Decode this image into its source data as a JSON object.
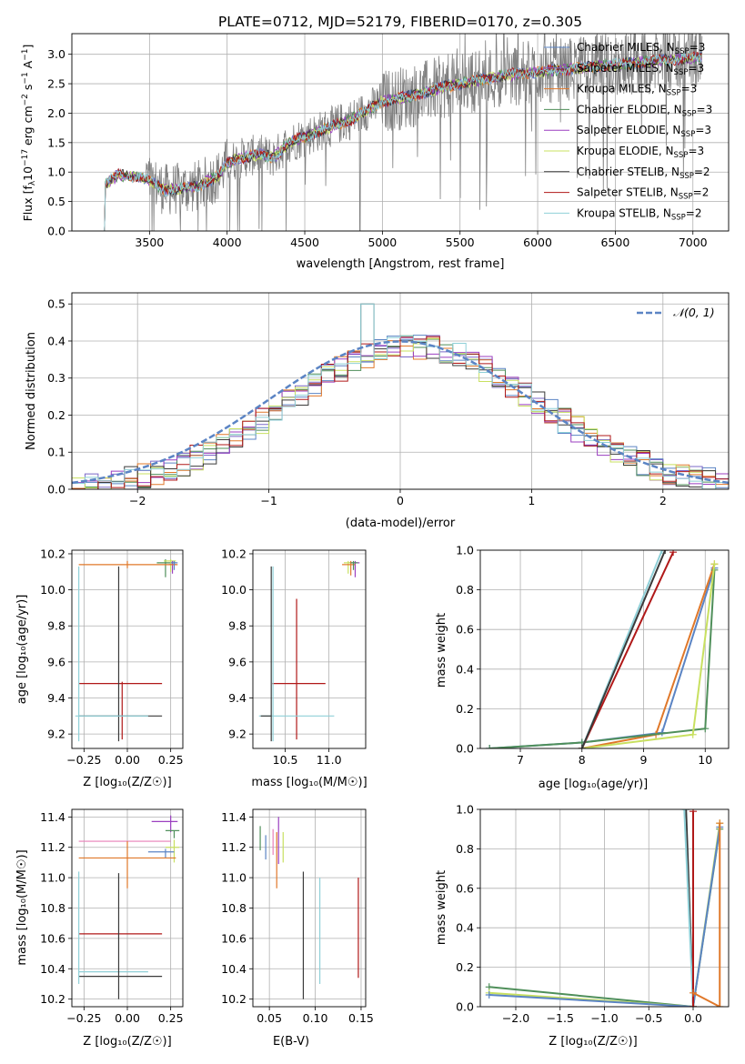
{
  "title": "PLATE=0712, MJD=52179, FIBERID=0170, z=0.305",
  "colors": {
    "miles_chabrier": "#5b84c4",
    "miles_salpeter": "#7b68c8",
    "miles_kroupa": "#e0782a",
    "elodie_chabrier": "#4f8f5a",
    "elodie_salpeter": "#9b3fc0",
    "elodie_kroupa": "#c8e060",
    "stelib_chabrier": "#3a3a3a",
    "stelib_salpeter": "#b01818",
    "stelib_kroupa": "#8fd0d8",
    "data": "#808080",
    "gauss": "#5b84c4",
    "pink": "#e87fb8"
  },
  "spectrum": {
    "ylabel_main": "Flux [f",
    "ylabel_sub": "λ",
    "ylabel_rest": "10",
    "ylabel_exp": "−17",
    "ylabel_units": " erg cm",
    "ylabel_exp2": "−2",
    "ylabel_units2": " s",
    "ylabel_exp3": "−1",
    "ylabel_units3": " A",
    "ylabel_exp4": "−1",
    "ylabel_end": "]",
    "xlabel": "wavelength [Angstrom, rest frame]",
    "legend": [
      {
        "name": "Chabrier MILES, N",
        "sub": "SSP",
        "val": "=3",
        "color": "miles_chabrier"
      },
      {
        "name": "Salpeter MILES, N",
        "sub": "SSP",
        "val": "=3",
        "color": "miles_salpeter"
      },
      {
        "name": "Kroupa MILES, N",
        "sub": "SSP",
        "val": "=3",
        "color": "miles_kroupa"
      },
      {
        "name": "Chabrier ELODIE, N",
        "sub": "SSP",
        "val": "=3",
        "color": "elodie_chabrier"
      },
      {
        "name": "Salpeter ELODIE, N",
        "sub": "SSP",
        "val": "=3",
        "color": "elodie_salpeter"
      },
      {
        "name": "Kroupa ELODIE, N",
        "sub": "SSP",
        "val": "=3",
        "color": "elodie_kroupa"
      },
      {
        "name": "Chabrier STELIB, N",
        "sub": "SSP",
        "val": "=2",
        "color": "stelib_chabrier"
      },
      {
        "name": "Salpeter STELIB, N",
        "sub": "SSP",
        "val": "=2",
        "color": "stelib_salpeter"
      },
      {
        "name": "Kroupa STELIB, N",
        "sub": "SSP",
        "val": "=2",
        "color": "stelib_kroupa"
      }
    ]
  },
  "chart_data": [
    {
      "id": "spectrum",
      "type": "line",
      "xlim": [
        3000,
        7230
      ],
      "ylim": [
        0,
        3.35
      ],
      "xticks": [
        3500,
        4000,
        4500,
        5000,
        5500,
        6000,
        6500,
        7000
      ],
      "yticks": [
        0.0,
        0.5,
        1.0,
        1.5,
        2.0,
        2.5,
        3.0
      ],
      "wl_range": [
        3210,
        7060
      ],
      "continuum": [
        [
          3210,
          0.0
        ],
        [
          3215,
          0.8
        ],
        [
          3300,
          0.95
        ],
        [
          3400,
          0.92
        ],
        [
          3480,
          0.88
        ],
        [
          3600,
          0.7
        ],
        [
          3700,
          0.72
        ],
        [
          3800,
          0.75
        ],
        [
          3880,
          0.85
        ],
        [
          3950,
          0.95
        ],
        [
          4000,
          1.15
        ],
        [
          4100,
          1.25
        ],
        [
          4200,
          1.3
        ],
        [
          4300,
          1.25
        ],
        [
          4400,
          1.5
        ],
        [
          4500,
          1.6
        ],
        [
          4600,
          1.7
        ],
        [
          4800,
          1.9
        ],
        [
          5000,
          2.2
        ],
        [
          5200,
          2.3
        ],
        [
          5400,
          2.45
        ],
        [
          5600,
          2.55
        ],
        [
          5800,
          2.65
        ],
        [
          6000,
          2.7
        ],
        [
          6200,
          2.75
        ],
        [
          6400,
          2.8
        ],
        [
          6600,
          2.85
        ],
        [
          6800,
          2.9
        ],
        [
          7060,
          2.95
        ]
      ],
      "grid": true
    },
    {
      "id": "residuals",
      "type": "step",
      "xlabel": "(data-model)/error",
      "ylabel": "Normed distribution",
      "xlim": [
        -2.5,
        2.5
      ],
      "ylim": [
        0,
        0.53
      ],
      "xticks": [
        -2,
        -1,
        0,
        1,
        2
      ],
      "xticklabels": [
        "−2",
        "−1",
        "0",
        "1",
        "2"
      ],
      "yticks": [
        0.0,
        0.1,
        0.2,
        0.3,
        0.4,
        0.5
      ],
      "legend": "𝒩(0, 1)",
      "legend_position": "top-right",
      "bin_width": 0.1,
      "grid": true
    },
    {
      "id": "age_vs_Z",
      "type": "scatter",
      "xlabel": "Z [log₁₀(Z/Z☉)]",
      "ylabel": "age  [log₁₀(age/yr)]",
      "xlim": [
        -0.32,
        0.32
      ],
      "ylim": [
        9.12,
        10.22
      ],
      "xticks": [
        -0.25,
        0.0,
        0.25
      ],
      "xticklabels": [
        "−0.25",
        "0.00",
        "0.25"
      ],
      "yticks": [
        9.2,
        9.4,
        9.6,
        9.8,
        10.0,
        10.2
      ],
      "errorbars": [
        {
          "x": 0.22,
          "y": 10.15,
          "xerr": [
            0.05,
            0.06
          ],
          "yerr": [
            0.08,
            0.02
          ],
          "c": "elodie_chabrier"
        },
        {
          "x": 0.25,
          "y": 10.16,
          "xerr": [
            0.04,
            0.03
          ],
          "yerr": [
            0.06,
            0.01
          ],
          "c": "elodie_kroupa"
        },
        {
          "x": 0.26,
          "y": 10.14,
          "xerr": [
            0.02,
            0.02
          ],
          "yerr": [
            0.05,
            0.02
          ],
          "c": "elodie_salpeter"
        },
        {
          "x": 0.0,
          "y": 10.14,
          "xerr": [
            0.28,
            0.29
          ],
          "yerr": [
            0.02,
            0.02
          ],
          "c": "miles_kroupa"
        },
        {
          "x": 0.27,
          "y": 10.15,
          "xerr": [
            0.02,
            0.02
          ],
          "yerr": [
            0.04,
            0.01
          ],
          "c": "miles_chabrier"
        },
        {
          "x": -0.03,
          "y": 9.48,
          "xerr": [
            0.25,
            0.23
          ],
          "yerr": [
            0.31,
            0.01
          ],
          "c": "stelib_salpeter"
        },
        {
          "x": -0.05,
          "y": 9.3,
          "xerr": [
            0.23,
            0.25
          ],
          "yerr": [
            0.14,
            0.83
          ],
          "c": "stelib_chabrier"
        },
        {
          "x": -0.28,
          "y": 9.3,
          "xerr": [
            0.02,
            0.4
          ],
          "yerr": [
            0.14,
            0.83
          ],
          "c": "stelib_kroupa"
        }
      ]
    },
    {
      "id": "age_vs_mass",
      "type": "scatter",
      "xlabel": "mass [log₁₀(M/M☉)]",
      "xlim": [
        10.13,
        11.42
      ],
      "ylim": [
        9.12,
        10.22
      ],
      "xticks": [
        10.5,
        11.0
      ],
      "xticklabels": [
        "10.5",
        "11.0"
      ],
      "yticks": [
        9.2,
        9.4,
        9.6,
        9.8,
        10.0,
        10.2
      ],
      "errorbars": [
        {
          "x": 11.3,
          "y": 10.15,
          "xerr": [
            0.08,
            0.05
          ],
          "yerr": [
            0.08,
            0.01
          ],
          "c": "elodie_salpeter"
        },
        {
          "x": 11.22,
          "y": 10.15,
          "xerr": [
            0.05,
            0.05
          ],
          "yerr": [
            0.06,
            0.01
          ],
          "c": "elodie_kroupa"
        },
        {
          "x": 11.25,
          "y": 10.14,
          "xerr": [
            0.1,
            0.05
          ],
          "yerr": [
            0.06,
            0.02
          ],
          "c": "miles_kroupa"
        },
        {
          "x": 11.28,
          "y": 10.15,
          "xerr": [
            0.03,
            0.05
          ],
          "yerr": [
            0.04,
            0.01
          ],
          "c": "elodie_chabrier"
        },
        {
          "x": 10.63,
          "y": 9.48,
          "xerr": [
            0.28,
            0.33
          ],
          "yerr": [
            0.31,
            0.47
          ],
          "c": "stelib_salpeter"
        },
        {
          "x": 10.36,
          "y": 9.3,
          "xerr": [
            0.16,
            0.7
          ],
          "yerr": [
            0.14,
            0.83
          ],
          "c": "stelib_kroupa"
        },
        {
          "x": 10.34,
          "y": 9.3,
          "xerr": [
            0.12,
            0.0
          ],
          "yerr": [
            0.14,
            0.83
          ],
          "c": "stelib_chabrier"
        }
      ]
    },
    {
      "id": "weight_vs_age",
      "type": "line",
      "xlabel": "age  [log₁₀(age/yr)]",
      "ylabel": "mass weight",
      "xlim": [
        6.35,
        10.38
      ],
      "ylim": [
        0,
        1
      ],
      "xticks": [
        7,
        8,
        9,
        10
      ],
      "xticklabels": [
        "7",
        "8",
        "9",
        "10"
      ],
      "yticks": [
        0.0,
        0.2,
        0.4,
        0.6,
        0.8,
        1.0
      ],
      "series": [
        {
          "c": "miles_chabrier",
          "x": [
            6.5,
            8.0,
            9.3,
            10.15
          ],
          "y": [
            0.0,
            0.03,
            0.08,
            0.91
          ]
        },
        {
          "c": "miles_kroupa",
          "x": [
            8.0,
            9.2,
            10.15
          ],
          "y": [
            0.0,
            0.07,
            0.93
          ]
        },
        {
          "c": "elodie_chabrier",
          "x": [
            6.5,
            8.0,
            10.0,
            10.15
          ],
          "y": [
            0.0,
            0.03,
            0.1,
            0.9
          ]
        },
        {
          "c": "elodie_kroupa",
          "x": [
            8.0,
            9.8,
            10.15
          ],
          "y": [
            0.0,
            0.07,
            0.93
          ]
        },
        {
          "c": "stelib_salpeter",
          "x": [
            8.0,
            9.48
          ],
          "y": [
            0.0,
            0.99
          ]
        },
        {
          "c": "stelib_kroupa",
          "x": [
            8.0,
            9.3
          ],
          "y": [
            0.0,
            1.0
          ]
        },
        {
          "c": "stelib_chabrier",
          "x": [
            8.0,
            9.35
          ],
          "y": [
            0.0,
            1.0
          ]
        }
      ]
    },
    {
      "id": "mass_vs_Z",
      "type": "scatter",
      "xlabel": "Z [log₁₀(Z/Z☉)]",
      "ylabel": "mass [log₁₀(M/M☉)]",
      "xlim": [
        -0.32,
        0.32
      ],
      "ylim": [
        10.15,
        11.45
      ],
      "xticks": [
        -0.25,
        0.0,
        0.25
      ],
      "xticklabels": [
        "−0.25",
        "0.00",
        "0.25"
      ],
      "yticks": [
        10.2,
        10.4,
        10.6,
        10.8,
        11.0,
        11.2,
        11.4
      ],
      "errorbars": [
        {
          "x": 0.25,
          "y": 11.37,
          "xerr": [
            0.11,
            0.04
          ],
          "yerr": [
            0.07,
            0.04
          ],
          "c": "elodie_salpeter"
        },
        {
          "x": 0.27,
          "y": 11.31,
          "xerr": [
            0.05,
            0.03
          ],
          "yerr": [
            0.05,
            0.0
          ],
          "c": "elodie_chabrier"
        },
        {
          "x": 0.0,
          "y": 11.24,
          "xerr": [
            0.28,
            0.25
          ],
          "yerr": [
            0.0,
            0.0
          ],
          "c": "pink"
        },
        {
          "x": 0.27,
          "y": 11.2,
          "xerr": [
            0.05,
            0.03
          ],
          "yerr": [
            0.1,
            0.05
          ],
          "c": "elodie_kroupa"
        },
        {
          "x": 0.22,
          "y": 11.17,
          "xerr": [
            0.1,
            0.05
          ],
          "yerr": [
            0.04,
            0.02
          ],
          "c": "miles_chabrier"
        },
        {
          "x": 0.0,
          "y": 11.13,
          "xerr": [
            0.28,
            0.28
          ],
          "yerr": [
            0.2,
            0.11
          ],
          "c": "miles_kroupa"
        },
        {
          "x": -0.03,
          "y": 10.63,
          "xerr": [
            0.25,
            0.23
          ],
          "yerr": [
            0.0,
            0.0
          ],
          "c": "stelib_salpeter"
        },
        {
          "x": -0.08,
          "y": 10.38,
          "xerr": [
            0.2,
            0.2
          ],
          "yerr": [
            0.0,
            0.0
          ],
          "c": "stelib_kroupa"
        },
        {
          "x": -0.05,
          "y": 10.35,
          "xerr": [
            0.23,
            0.25
          ],
          "yerr": [
            0.15,
            0.68
          ],
          "c": "stelib_chabrier"
        },
        {
          "x": -0.28,
          "y": 10.6,
          "xerr": [
            0.0,
            0.0
          ],
          "yerr": [
            0.3,
            0.44
          ],
          "c": "stelib_kroupa"
        }
      ]
    },
    {
      "id": "mass_vs_ebv",
      "type": "errorbar",
      "xlabel": "E(B-V)",
      "xlim": [
        0.032,
        0.155
      ],
      "ylim": [
        10.15,
        11.45
      ],
      "xticks": [
        0.05,
        0.1,
        0.15
      ],
      "xticklabels": [
        "0.05",
        "0.10",
        "0.15"
      ],
      "yticks": [
        10.2,
        10.4,
        10.6,
        10.8,
        11.0,
        11.2,
        11.4
      ],
      "errorbars": [
        {
          "x": 0.04,
          "y": 11.24,
          "yerr": [
            0.06,
            0.1
          ],
          "c": "elodie_chabrier"
        },
        {
          "x": 0.046,
          "y": 11.18,
          "yerr": [
            0.06,
            0.1
          ],
          "c": "miles_chabrier"
        },
        {
          "x": 0.054,
          "y": 11.22,
          "yerr": [
            0.07,
            0.1
          ],
          "c": "pink"
        },
        {
          "x": 0.06,
          "y": 11.25,
          "yerr": [
            0.16,
            0.15
          ],
          "c": "elodie_salpeter"
        },
        {
          "x": 0.058,
          "y": 11.15,
          "yerr": [
            0.22,
            0.15
          ],
          "c": "miles_kroupa"
        },
        {
          "x": 0.065,
          "y": 11.2,
          "yerr": [
            0.1,
            0.1
          ],
          "c": "elodie_kroupa"
        },
        {
          "x": 0.087,
          "y": 10.6,
          "yerr": [
            0.4,
            0.44
          ],
          "c": "stelib_chabrier"
        },
        {
          "x": 0.105,
          "y": 10.68,
          "yerr": [
            0.38,
            0.32
          ],
          "c": "stelib_kroupa"
        },
        {
          "x": 0.147,
          "y": 10.67,
          "yerr": [
            0.33,
            0.33
          ],
          "c": "stelib_salpeter"
        }
      ]
    },
    {
      "id": "weight_vs_Z",
      "type": "line",
      "xlabel": "Z [log₁₀(Z/Z☉)]",
      "ylabel": "mass weight",
      "xlim": [
        -2.4,
        0.4
      ],
      "ylim": [
        0,
        1
      ],
      "xticks": [
        -2.0,
        -1.5,
        -1.0,
        -0.5,
        0.0
      ],
      "xticklabels": [
        "−2.0",
        "−1.5",
        "−1.0",
        "−0.5",
        "0.0"
      ],
      "yticks": [
        0.0,
        0.2,
        0.4,
        0.6,
        0.8,
        1.0
      ],
      "series": [
        {
          "c": "elodie_chabrier",
          "x": [
            -2.3,
            0.0,
            0.3
          ],
          "y": [
            0.1,
            0.0,
            0.9
          ]
        },
        {
          "c": "elodie_kroupa",
          "x": [
            -2.3,
            0.0,
            0.3
          ],
          "y": [
            0.07,
            0.0,
            0.93
          ]
        },
        {
          "c": "miles_chabrier",
          "x": [
            -2.3,
            0.0,
            0.3
          ],
          "y": [
            0.06,
            0.0,
            0.91
          ]
        },
        {
          "c": "stelib_chabrier",
          "x": [
            -0.08,
            0.0
          ],
          "y": [
            1.0,
            0.0
          ]
        },
        {
          "c": "stelib_kroupa",
          "x": [
            -0.1,
            0.0
          ],
          "y": [
            1.0,
            0.0
          ]
        },
        {
          "c": "stelib_salpeter",
          "x": [
            0.0,
            0.0
          ],
          "y": [
            0.99,
            0.0
          ]
        },
        {
          "c": "miles_kroupa",
          "x": [
            0.0,
            0.3,
            0.3
          ],
          "y": [
            0.07,
            0.0,
            0.93
          ]
        }
      ]
    }
  ]
}
